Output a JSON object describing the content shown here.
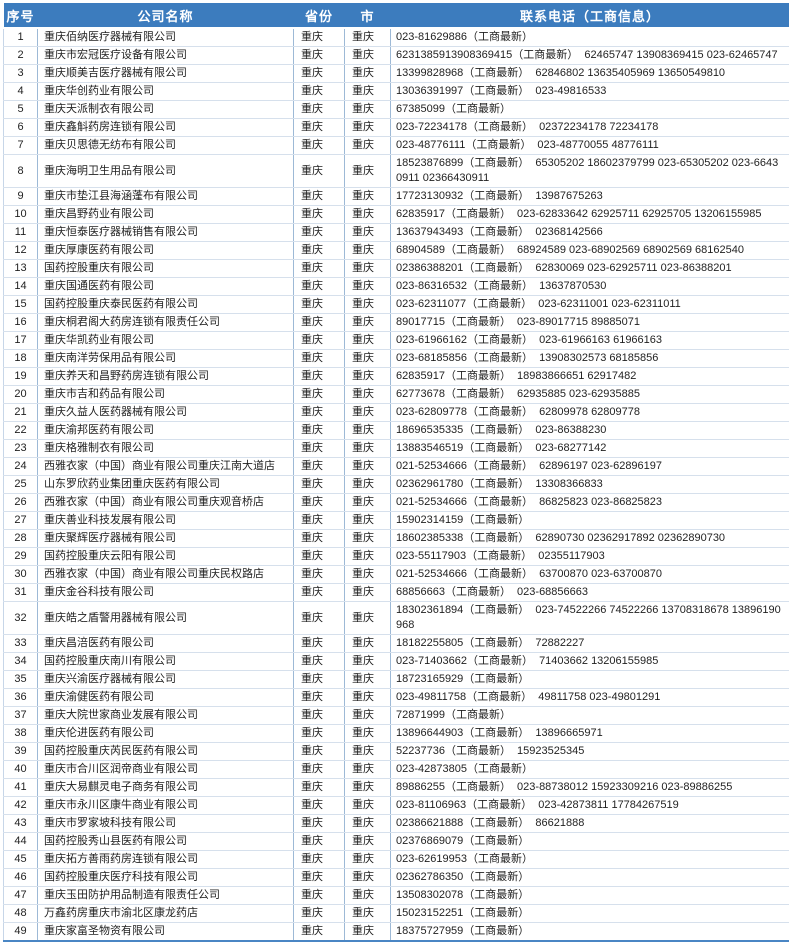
{
  "colors": {
    "header_bg": "#3c7cbe",
    "header_text": "#ffffff",
    "grid_vertical": "#9db9d6",
    "grid_horizontal": "#d6e0ec",
    "outer_bottom_border": "#4a86c4"
  },
  "table": {
    "columns": [
      {
        "key": "index",
        "label": "序号"
      },
      {
        "key": "name",
        "label": "公司名称"
      },
      {
        "key": "province",
        "label": "省份"
      },
      {
        "key": "city",
        "label": "市"
      },
      {
        "key": "phone",
        "label": "联系电话（工商信息）"
      }
    ],
    "rows": [
      {
        "index": "1",
        "name": "重庆佰纳医疗器械有限公司",
        "province": "重庆",
        "city": "重庆",
        "phone": "023-81629886（工商最新）"
      },
      {
        "index": "2",
        "name": "重庆市宏冠医疗设备有限公司",
        "province": "重庆",
        "city": "重庆",
        "phone": "6231385913908369415（工商最新）  62465747 13908369415 023-62465747"
      },
      {
        "index": "3",
        "name": "重庆顺美吉医疗器械有限公司",
        "province": "重庆",
        "city": "重庆",
        "phone": "13399828968（工商最新）  62846802 13635405969 13650549810"
      },
      {
        "index": "4",
        "name": "重庆华创药业有限公司",
        "province": "重庆",
        "city": "重庆",
        "phone": "13036391997（工商最新）  023-49816533"
      },
      {
        "index": "5",
        "name": "重庆天派制衣有限公司",
        "province": "重庆",
        "city": "重庆",
        "phone": "67385099（工商最新）"
      },
      {
        "index": "6",
        "name": "重庆鑫斛药房连锁有限公司",
        "province": "重庆",
        "city": "重庆",
        "phone": "023-72234178（工商最新）  02372234178 72234178"
      },
      {
        "index": "7",
        "name": "重庆贝思德无纺布有限公司",
        "province": "重庆",
        "city": "重庆",
        "phone": "023-48776111（工商最新）  023-48770055 48776111"
      },
      {
        "index": "8",
        "name": "重庆海明卫生用品有限公司",
        "province": "重庆",
        "city": "重庆",
        "phone": "18523876899（工商最新）  65305202 18602379799 023-65305202 023-66430911 02366430911"
      },
      {
        "index": "9",
        "name": "重庆市垫江县海涵蓬布有限公司",
        "province": "重庆",
        "city": "重庆",
        "phone": "17723130932（工商最新）  13987675263"
      },
      {
        "index": "10",
        "name": "重庆昌野药业有限公司",
        "province": "重庆",
        "city": "重庆",
        "phone": "62835917（工商最新）  023-62833642 62925711 62925705 13206155985"
      },
      {
        "index": "11",
        "name": "重庆恒泰医疗器械销售有限公司",
        "province": "重庆",
        "city": "重庆",
        "phone": "13637943493（工商最新）  02368142566"
      },
      {
        "index": "12",
        "name": "重庆厚康医药有限公司",
        "province": "重庆",
        "city": "重庆",
        "phone": "68904589（工商最新）  68924589 023-68902569 68902569 68162540"
      },
      {
        "index": "13",
        "name": "国药控股重庆有限公司",
        "province": "重庆",
        "city": "重庆",
        "phone": "02386388201（工商最新）  62830069 023-62925711 023-86388201"
      },
      {
        "index": "14",
        "name": "重庆国通医药有限公司",
        "province": "重庆",
        "city": "重庆",
        "phone": "023-86316532（工商最新）  13637870530"
      },
      {
        "index": "15",
        "name": "国药控股重庆泰民医药有限公司",
        "province": "重庆",
        "city": "重庆",
        "phone": "023-62311077（工商最新）  023-62311001 023-62311011"
      },
      {
        "index": "16",
        "name": "重庆桐君阁大药房连锁有限责任公司",
        "province": "重庆",
        "city": "重庆",
        "phone": "89017715（工商最新）  023-89017715 89885071"
      },
      {
        "index": "17",
        "name": "重庆华凯药业有限公司",
        "province": "重庆",
        "city": "重庆",
        "phone": "023-61966162（工商最新）  023-61966163 61966163"
      },
      {
        "index": "18",
        "name": "重庆南洋劳保用品有限公司",
        "province": "重庆",
        "city": "重庆",
        "phone": "023-68185856（工商最新）  13908302573 68185856"
      },
      {
        "index": "19",
        "name": "重庆养天和昌野药房连锁有限公司",
        "province": "重庆",
        "city": "重庆",
        "phone": "62835917（工商最新）  18983866651 62917482"
      },
      {
        "index": "20",
        "name": "重庆市吉和药品有限公司",
        "province": "重庆",
        "city": "重庆",
        "phone": "62773678（工商最新）  62935885 023-62935885"
      },
      {
        "index": "21",
        "name": "重庆久益人医药器械有限公司",
        "province": "重庆",
        "city": "重庆",
        "phone": "023-62809778（工商最新）  62809978 62809778"
      },
      {
        "index": "22",
        "name": "重庆渝邦医药有限公司",
        "province": "重庆",
        "city": "重庆",
        "phone": "18696535335（工商最新）  023-86388230"
      },
      {
        "index": "23",
        "name": "重庆格雅制衣有限公司",
        "province": "重庆",
        "city": "重庆",
        "phone": "13883546519（工商最新）  023-68277142"
      },
      {
        "index": "24",
        "name": "西雅衣家（中国）商业有限公司重庆江南大道店",
        "province": "重庆",
        "city": "重庆",
        "phone": "021-52534666（工商最新）  62896197 023-62896197"
      },
      {
        "index": "25",
        "name": "山东罗欣药业集团重庆医药有限公司",
        "province": "重庆",
        "city": "重庆",
        "phone": "02362961780（工商最新）  13308366833"
      },
      {
        "index": "26",
        "name": "西雅衣家（中国）商业有限公司重庆观音桥店",
        "province": "重庆",
        "city": "重庆",
        "phone": "021-52534666（工商最新）  86825823 023-86825823"
      },
      {
        "index": "27",
        "name": "重庆善业科技发展有限公司",
        "province": "重庆",
        "city": "重庆",
        "phone": "15902314159（工商最新）"
      },
      {
        "index": "28",
        "name": "重庆聚辉医疗器械有限公司",
        "province": "重庆",
        "city": "重庆",
        "phone": "18602385338（工商最新）  62890730 02362917892 02362890730"
      },
      {
        "index": "29",
        "name": "国药控股重庆云阳有限公司",
        "province": "重庆",
        "city": "重庆",
        "phone": "023-55117903（工商最新）  02355117903"
      },
      {
        "index": "30",
        "name": "西雅衣家（中国）商业有限公司重庆民权路店",
        "province": "重庆",
        "city": "重庆",
        "phone": "021-52534666（工商最新）  63700870 023-63700870"
      },
      {
        "index": "31",
        "name": "重庆金谷科技有限公司",
        "province": "重庆",
        "city": "重庆",
        "phone": "68856663（工商最新）  023-68856663"
      },
      {
        "index": "32",
        "name": "重庆皓之盾警用器械有限公司",
        "province": "重庆",
        "city": "重庆",
        "phone": "18302361894（工商最新）  023-74522266 74522266 13708318678 13896190968"
      },
      {
        "index": "33",
        "name": "重庆昌涪医药有限公司",
        "province": "重庆",
        "city": "重庆",
        "phone": "18182255805（工商最新）  72882227"
      },
      {
        "index": "34",
        "name": "国药控股重庆南川有限公司",
        "province": "重庆",
        "city": "重庆",
        "phone": "023-71403662（工商最新）  71403662 13206155985"
      },
      {
        "index": "35",
        "name": "重庆兴渝医疗器械有限公司",
        "province": "重庆",
        "city": "重庆",
        "phone": "18723165929（工商最新）"
      },
      {
        "index": "36",
        "name": "重庆渝健医药有限公司",
        "province": "重庆",
        "city": "重庆",
        "phone": "023-49811758（工商最新）  49811758 023-49801291"
      },
      {
        "index": "37",
        "name": "重庆大院世家商业发展有限公司",
        "province": "重庆",
        "city": "重庆",
        "phone": "72871999（工商最新）"
      },
      {
        "index": "38",
        "name": "重庆伦进医药有限公司",
        "province": "重庆",
        "city": "重庆",
        "phone": "13896644903（工商最新）  13896665971"
      },
      {
        "index": "39",
        "name": "国药控股重庆芮民医药有限公司",
        "province": "重庆",
        "city": "重庆",
        "phone": "52237736（工商最新）  15923525345"
      },
      {
        "index": "40",
        "name": "重庆市合川区润帝商业有限公司",
        "province": "重庆",
        "city": "重庆",
        "phone": "023-42873805（工商最新）"
      },
      {
        "index": "41",
        "name": "重庆大易麒灵电子商务有限公司",
        "province": "重庆",
        "city": "重庆",
        "phone": "89886255（工商最新）  023-88738012 15923309216 023-89886255"
      },
      {
        "index": "42",
        "name": "重庆市永川区康牛商业有限公司",
        "province": "重庆",
        "city": "重庆",
        "phone": "023-81106963（工商最新）  023-42873811 17784267519"
      },
      {
        "index": "43",
        "name": "重庆市罗家坡科技有限公司",
        "province": "重庆",
        "city": "重庆",
        "phone": "02386621888（工商最新）  86621888"
      },
      {
        "index": "44",
        "name": "国药控股秀山县医药有限公司",
        "province": "重庆",
        "city": "重庆",
        "phone": "02376869079（工商最新）"
      },
      {
        "index": "45",
        "name": "重庆拓方善雨药房连锁有限公司",
        "province": "重庆",
        "city": "重庆",
        "phone": "023-62619953（工商最新）"
      },
      {
        "index": "46",
        "name": "国药控股重庆医疗科技有限公司",
        "province": "重庆",
        "city": "重庆",
        "phone": "02362786350（工商最新）"
      },
      {
        "index": "47",
        "name": "重庆玉田防护用品制造有限责任公司",
        "province": "重庆",
        "city": "重庆",
        "phone": "13508302078（工商最新）"
      },
      {
        "index": "48",
        "name": "万鑫药房重庆市渝北区康龙药店",
        "province": "重庆",
        "city": "重庆",
        "phone": "15023152251（工商最新）"
      },
      {
        "index": "49",
        "name": "重庆家畗圣物资有限公司",
        "province": "重庆",
        "city": "重庆",
        "phone": "18375727959（工商最新）"
      }
    ]
  }
}
